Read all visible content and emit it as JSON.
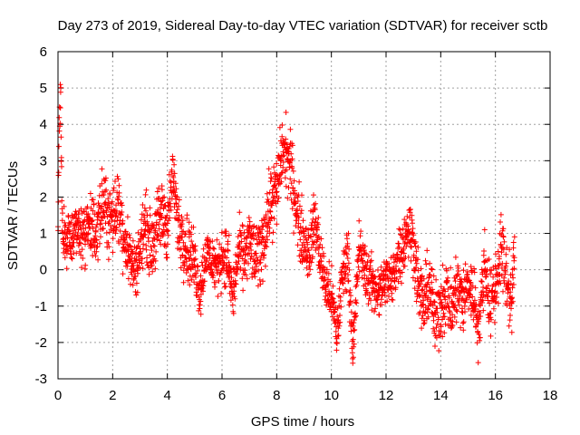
{
  "chart_data": {
    "type": "scatter",
    "title": "Day 273 of 2019, Sidereal Day-to-day VTEC variation (SDTVAR) for receiver sctb",
    "xlabel": "GPS time / hours",
    "ylabel": "SDTVAR / TECUs",
    "xlim": [
      0,
      18
    ],
    "ylim": [
      -3,
      6
    ],
    "xticks": [
      "0",
      "2",
      "4",
      "6",
      "8",
      "10",
      "12",
      "14",
      "16",
      "18"
    ],
    "yticks": [
      "-3",
      "-2",
      "-1",
      "0",
      "1",
      "2",
      "3",
      "4",
      "5",
      "6"
    ],
    "grid": true,
    "marker": "+",
    "color": "#ff0000",
    "series": [
      {
        "name": "SDTVAR",
        "trend": {
          "x": [
            0.0,
            0.05,
            0.1,
            0.15,
            0.2,
            0.3,
            0.4,
            0.5,
            0.6,
            0.8,
            1.0,
            1.2,
            1.4,
            1.6,
            1.8,
            2.0,
            2.2,
            2.4,
            2.6,
            2.8,
            3.0,
            3.2,
            3.4,
            3.6,
            3.8,
            4.0,
            4.2,
            4.4,
            4.6,
            4.8,
            5.0,
            5.2,
            5.4,
            5.6,
            5.8,
            6.0,
            6.2,
            6.4,
            6.6,
            6.8,
            7.0,
            7.2,
            7.4,
            7.6,
            7.8,
            8.0,
            8.2,
            8.4,
            8.6,
            8.8,
            9.0,
            9.2,
            9.4,
            9.6,
            9.8,
            10.0,
            10.2,
            10.4,
            10.6,
            10.8,
            11.0,
            11.2,
            11.4,
            11.6,
            11.8,
            12.0,
            12.2,
            12.4,
            12.6,
            12.8,
            13.0,
            13.2,
            13.4,
            13.6,
            13.8,
            14.0,
            14.2,
            14.4,
            14.6,
            14.8,
            15.0,
            15.2,
            15.4,
            15.6,
            15.8,
            16.0,
            16.2,
            16.4,
            16.6,
            16.7
          ],
          "y": [
            1.3,
            4.0,
            4.7,
            1.2,
            1.0,
            0.8,
            1.0,
            0.7,
            1.4,
            1.0,
            1.1,
            1.3,
            0.6,
            1.9,
            1.6,
            1.4,
            1.8,
            1.0,
            0.4,
            0.0,
            0.5,
            1.3,
            0.6,
            1.1,
            1.5,
            1.2,
            2.6,
            1.2,
            0.9,
            0.5,
            0.2,
            -0.6,
            0.4,
            0.3,
            0.0,
            0.4,
            0.3,
            -0.8,
            0.5,
            0.3,
            0.8,
            0.3,
            0.5,
            1.2,
            1.9,
            2.1,
            3.3,
            3.1,
            2.4,
            1.3,
            0.8,
            0.5,
            1.4,
            0.3,
            -0.5,
            -0.7,
            -1.8,
            -0.2,
            0.5,
            -2.3,
            0.6,
            0.1,
            -0.3,
            -0.5,
            -0.6,
            -0.2,
            -0.4,
            0.3,
            0.6,
            1.2,
            0.8,
            -0.6,
            -1.0,
            -0.3,
            -1.5,
            -0.9,
            -0.6,
            -1.2,
            -0.4,
            -0.9,
            -0.4,
            -0.7,
            -1.6,
            0.2,
            -0.9,
            -0.5,
            0.6,
            -0.2,
            -0.9,
            0.5
          ],
          "spread": [
            0.4,
            0.6,
            0.6,
            0.5,
            0.6,
            0.6,
            0.6,
            0.7,
            0.7,
            0.7,
            0.8,
            0.8,
            0.8,
            0.8,
            0.8,
            0.8,
            0.8,
            0.8,
            0.7,
            0.6,
            0.7,
            0.7,
            0.7,
            0.8,
            0.8,
            0.8,
            0.5,
            0.8,
            0.8,
            0.7,
            0.7,
            0.6,
            0.6,
            0.6,
            0.6,
            0.6,
            0.7,
            0.6,
            0.7,
            0.7,
            0.7,
            0.7,
            0.8,
            0.8,
            0.8,
            0.8,
            0.8,
            0.8,
            0.8,
            0.8,
            0.7,
            0.7,
            0.7,
            0.6,
            0.6,
            0.6,
            0.6,
            0.6,
            0.6,
            0.6,
            0.6,
            0.6,
            0.6,
            0.6,
            0.6,
            0.6,
            0.6,
            0.6,
            0.7,
            0.7,
            0.7,
            0.7,
            0.8,
            0.8,
            0.8,
            0.8,
            0.8,
            0.8,
            0.8,
            0.8,
            0.7,
            0.7,
            0.7,
            0.7,
            0.8,
            0.8,
            0.8,
            0.8,
            0.7,
            0.7
          ]
        },
        "point_count": 2400
      }
    ]
  }
}
